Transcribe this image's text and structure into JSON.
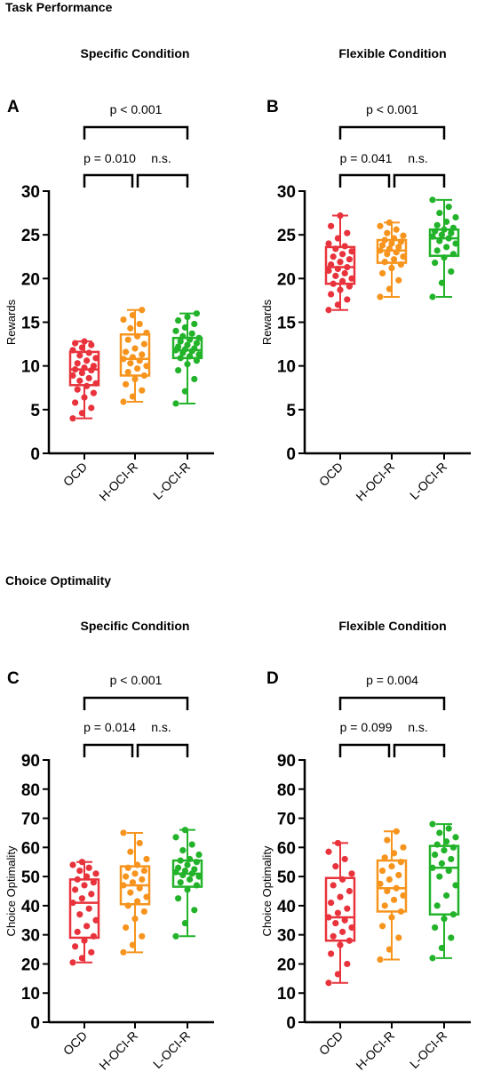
{
  "sections": [
    {
      "title": "Task Performance"
    },
    {
      "title": "Choice Optimality"
    }
  ],
  "chart_data": [
    {
      "type": "box",
      "panel": "A",
      "title": "Specific Condition",
      "ylabel": "Rewards",
      "ylim": [
        0,
        30
      ],
      "yticks": [
        0,
        5,
        10,
        15,
        20,
        25,
        30
      ],
      "categories": [
        "OCD",
        "H-OCI-R",
        "L-OCI-R"
      ],
      "colors": [
        "#e8333c",
        "#f7941d",
        "#22b32a"
      ],
      "boxes": [
        {
          "min": 4.0,
          "q1": 7.8,
          "median": 9.6,
          "q3": 11.6,
          "max": 12.8
        },
        {
          "min": 5.9,
          "q1": 8.9,
          "median": 10.8,
          "q3": 13.6,
          "max": 16.4
        },
        {
          "min": 5.7,
          "q1": 10.9,
          "median": 11.8,
          "q3": 13.2,
          "max": 16.0
        }
      ],
      "points": [
        [
          4.0,
          4.6,
          5.2,
          5.8,
          6.4,
          6.9,
          7.3,
          7.7,
          8.0,
          8.3,
          8.6,
          8.9,
          9.2,
          9.5,
          9.6,
          9.8,
          10.0,
          10.3,
          10.6,
          10.9,
          11.2,
          11.5,
          11.8,
          12.1,
          12.4,
          12.6,
          12.8
        ],
        [
          5.9,
          6.5,
          7.2,
          7.9,
          8.5,
          8.9,
          9.3,
          9.7,
          10.0,
          10.3,
          10.6,
          10.8,
          11.0,
          11.3,
          11.6,
          12.0,
          12.5,
          13.0,
          13.4,
          13.8,
          14.3,
          14.8,
          15.3,
          15.8,
          16.4
        ],
        [
          5.7,
          7.1,
          8.5,
          9.5,
          10.2,
          10.6,
          10.9,
          11.1,
          11.3,
          11.5,
          11.7,
          11.8,
          11.9,
          12.0,
          12.2,
          12.4,
          12.6,
          12.8,
          13.0,
          13.2,
          13.4,
          13.7,
          14.0,
          14.4,
          14.8,
          15.2,
          15.6,
          16.0
        ]
      ],
      "comparisons": [
        {
          "label": "p = 0.010",
          "from": 0,
          "to": 1,
          "level": 1
        },
        {
          "label": "n.s.",
          "from": 1,
          "to": 2,
          "level": 1
        },
        {
          "label": "p < 0.001",
          "from": 0,
          "to": 2,
          "level": 2
        }
      ]
    },
    {
      "type": "box",
      "panel": "B",
      "title": "Flexible Condition",
      "ylabel": "Rewards",
      "ylim": [
        0,
        30
      ],
      "yticks": [
        0,
        5,
        10,
        15,
        20,
        25,
        30
      ],
      "categories": [
        "OCD",
        "H-OCI-R",
        "L-OCI-R"
      ],
      "colors": [
        "#e8333c",
        "#f7941d",
        "#22b32a"
      ],
      "boxes": [
        {
          "min": 16.4,
          "q1": 19.4,
          "median": 21.3,
          "q3": 23.6,
          "max": 27.2
        },
        {
          "min": 17.9,
          "q1": 21.8,
          "median": 23.2,
          "q3": 24.4,
          "max": 26.4
        },
        {
          "min": 17.9,
          "q1": 22.6,
          "median": 24.6,
          "q3": 25.6,
          "max": 29.0
        }
      ],
      "points": [
        [
          16.4,
          17.0,
          17.6,
          18.2,
          18.7,
          19.1,
          19.4,
          19.7,
          20.0,
          20.3,
          20.6,
          20.9,
          21.1,
          21.3,
          21.6,
          21.9,
          22.2,
          22.5,
          22.8,
          23.1,
          23.4,
          23.7,
          24.0,
          24.6,
          25.2,
          26.0,
          27.2
        ],
        [
          17.9,
          18.8,
          19.8,
          20.6,
          21.2,
          21.6,
          21.9,
          22.2,
          22.5,
          22.8,
          23.0,
          23.2,
          23.4,
          23.6,
          23.8,
          24.0,
          24.2,
          24.4,
          24.6,
          24.9,
          25.2,
          25.6,
          26.0,
          26.4
        ],
        [
          17.9,
          19.5,
          20.8,
          21.8,
          22.4,
          22.8,
          23.2,
          23.6,
          24.0,
          24.3,
          24.6,
          24.8,
          25.0,
          25.2,
          25.4,
          25.6,
          25.8,
          26.1,
          26.5,
          27.0,
          27.5,
          28.2,
          29.0
        ]
      ],
      "comparisons": [
        {
          "label": "p = 0.041",
          "from": 0,
          "to": 1,
          "level": 1
        },
        {
          "label": "n.s.",
          "from": 1,
          "to": 2,
          "level": 1
        },
        {
          "label": "p < 0.001",
          "from": 0,
          "to": 2,
          "level": 2
        }
      ]
    },
    {
      "type": "box",
      "panel": "C",
      "title": "Specific Condition",
      "ylabel": "Choice Optimality",
      "ylim": [
        0,
        90
      ],
      "yticks": [
        0,
        10,
        20,
        30,
        40,
        50,
        60,
        70,
        80,
        90
      ],
      "categories": [
        "OCD",
        "H-OCI-R",
        "L-OCI-R"
      ],
      "colors": [
        "#e8333c",
        "#f7941d",
        "#22b32a"
      ],
      "boxes": [
        {
          "min": 20.5,
          "q1": 29.0,
          "median": 41.0,
          "q3": 49.0,
          "max": 55.0
        },
        {
          "min": 24.0,
          "q1": 40.5,
          "median": 47.0,
          "q3": 53.5,
          "max": 65.0
        },
        {
          "min": 29.5,
          "q1": 46.5,
          "median": 51.0,
          "q3": 55.5,
          "max": 66.0
        }
      ],
      "points": [
        [
          20.5,
          22.0,
          24.0,
          26.0,
          28.0,
          29.5,
          31.0,
          33.0,
          35.0,
          37.0,
          39.0,
          41.0,
          42.5,
          44.0,
          45.5,
          47.0,
          48.0,
          49.0,
          50.0,
          51.0,
          52.0,
          53.0,
          54.0,
          55.0
        ],
        [
          24.0,
          26.5,
          29.5,
          32.5,
          35.5,
          38.0,
          40.0,
          41.5,
          43.0,
          44.5,
          46.0,
          47.0,
          48.0,
          49.0,
          50.0,
          51.0,
          52.0,
          53.0,
          54.0,
          56.0,
          58.5,
          61.5,
          65.0
        ],
        [
          29.5,
          34.0,
          38.5,
          42.5,
          45.5,
          47.0,
          48.0,
          49.0,
          50.0,
          50.5,
          51.0,
          51.5,
          52.0,
          52.5,
          53.0,
          54.0,
          55.0,
          55.5,
          56.0,
          57.5,
          59.0,
          61.0,
          63.5,
          66.0
        ]
      ],
      "comparisons": [
        {
          "label": "p = 0.014",
          "from": 0,
          "to": 1,
          "level": 1
        },
        {
          "label": "n.s.",
          "from": 1,
          "to": 2,
          "level": 1
        },
        {
          "label": "p < 0.001",
          "from": 0,
          "to": 2,
          "level": 2
        }
      ]
    },
    {
      "type": "box",
      "panel": "D",
      "title": "Flexible Condition",
      "ylabel": "Choice Optimality",
      "ylim": [
        0,
        90
      ],
      "yticks": [
        0,
        10,
        20,
        30,
        40,
        50,
        60,
        70,
        80,
        90
      ],
      "categories": [
        "OCD",
        "H-OCI-R",
        "L-OCI-R"
      ],
      "colors": [
        "#e8333c",
        "#f7941d",
        "#22b32a"
      ],
      "boxes": [
        {
          "min": 13.5,
          "q1": 28.0,
          "median": 36.0,
          "q3": 49.5,
          "max": 61.5
        },
        {
          "min": 21.5,
          "q1": 38.0,
          "median": 46.0,
          "q3": 55.5,
          "max": 65.5
        },
        {
          "min": 22.0,
          "q1": 37.0,
          "median": 53.0,
          "q3": 60.5,
          "max": 68.0
        }
      ],
      "points": [
        [
          13.5,
          16.5,
          20.0,
          23.5,
          26.5,
          28.0,
          29.5,
          31.0,
          32.5,
          34.0,
          35.0,
          36.0,
          37.5,
          39.0,
          41.0,
          43.0,
          45.0,
          47.0,
          49.0,
          51.0,
          53.5,
          56.0,
          58.5,
          61.5
        ],
        [
          21.5,
          25.0,
          29.0,
          33.0,
          36.0,
          38.0,
          40.0,
          42.0,
          43.5,
          45.0,
          46.0,
          47.5,
          49.0,
          50.5,
          52.0,
          53.5,
          55.0,
          56.5,
          58.0,
          60.0,
          62.5,
          65.5
        ],
        [
          22.0,
          25.5,
          29.0,
          32.5,
          35.5,
          37.0,
          40.0,
          43.5,
          47.0,
          50.0,
          52.0,
          53.0,
          54.5,
          56.0,
          57.5,
          59.0,
          60.0,
          61.0,
          62.0,
          63.5,
          65.0,
          66.5,
          68.0
        ]
      ],
      "comparisons": [
        {
          "label": "p = 0.099",
          "from": 0,
          "to": 1,
          "level": 1
        },
        {
          "label": "n.s.",
          "from": 1,
          "to": 2,
          "level": 1
        },
        {
          "label": "p = 0.004",
          "from": 0,
          "to": 2,
          "level": 2
        }
      ]
    }
  ]
}
